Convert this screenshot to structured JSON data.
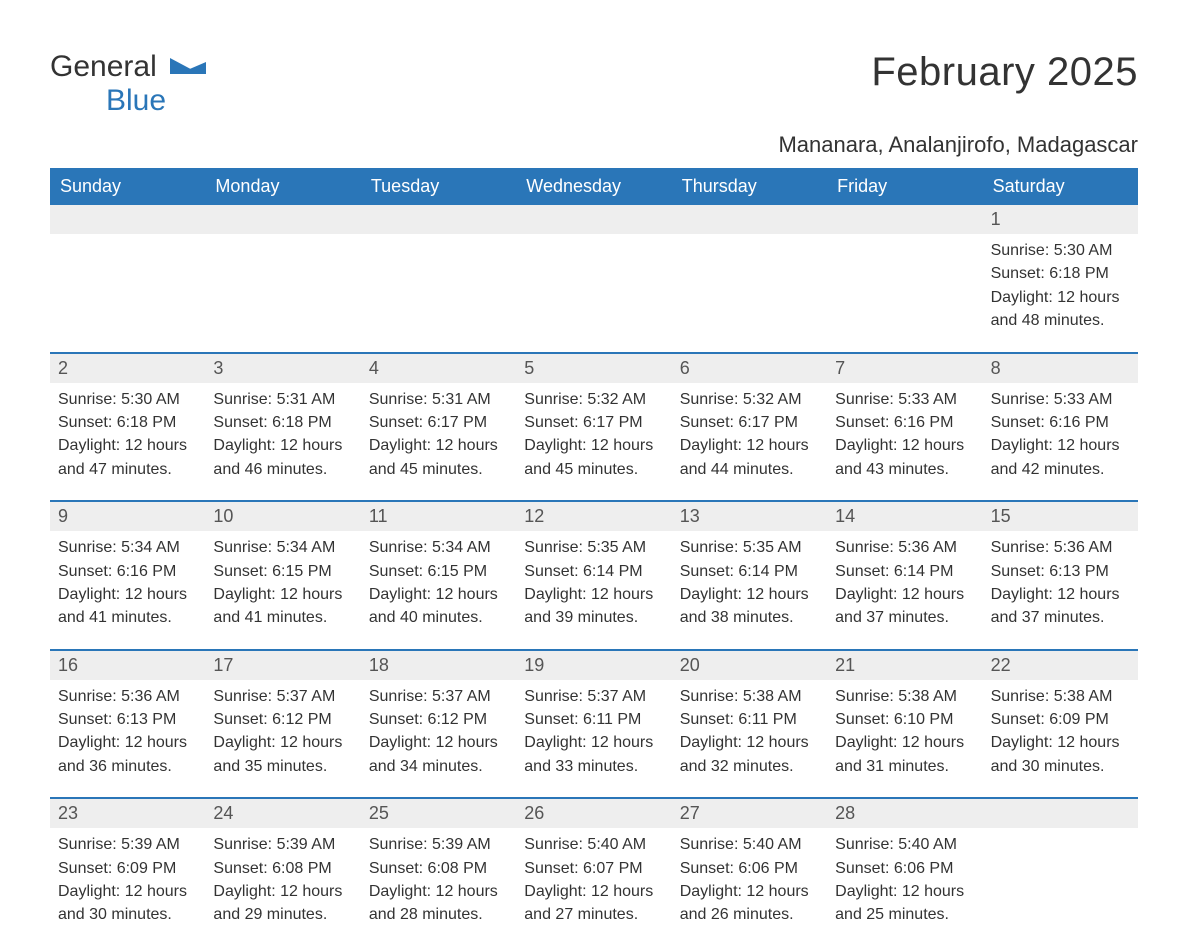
{
  "brand": {
    "part1": "General",
    "part2": "Blue",
    "accent": "#2a76b8"
  },
  "title": "February 2025",
  "location": "Mananara, Analanjirofo, Madagascar",
  "colors": {
    "header_bg": "#2a76b8",
    "header_text": "#ffffff",
    "daynum_bg": "#eeeeee",
    "text": "#333333",
    "page_bg": "#ffffff"
  },
  "weekdays": [
    "Sunday",
    "Monday",
    "Tuesday",
    "Wednesday",
    "Thursday",
    "Friday",
    "Saturday"
  ],
  "weeks": [
    [
      null,
      null,
      null,
      null,
      null,
      null,
      {
        "d": "1",
        "sunrise": "Sunrise: 5:30 AM",
        "sunset": "Sunset: 6:18 PM",
        "dl1": "Daylight: 12 hours",
        "dl2": "and 48 minutes."
      }
    ],
    [
      {
        "d": "2",
        "sunrise": "Sunrise: 5:30 AM",
        "sunset": "Sunset: 6:18 PM",
        "dl1": "Daylight: 12 hours",
        "dl2": "and 47 minutes."
      },
      {
        "d": "3",
        "sunrise": "Sunrise: 5:31 AM",
        "sunset": "Sunset: 6:18 PM",
        "dl1": "Daylight: 12 hours",
        "dl2": "and 46 minutes."
      },
      {
        "d": "4",
        "sunrise": "Sunrise: 5:31 AM",
        "sunset": "Sunset: 6:17 PM",
        "dl1": "Daylight: 12 hours",
        "dl2": "and 45 minutes."
      },
      {
        "d": "5",
        "sunrise": "Sunrise: 5:32 AM",
        "sunset": "Sunset: 6:17 PM",
        "dl1": "Daylight: 12 hours",
        "dl2": "and 45 minutes."
      },
      {
        "d": "6",
        "sunrise": "Sunrise: 5:32 AM",
        "sunset": "Sunset: 6:17 PM",
        "dl1": "Daylight: 12 hours",
        "dl2": "and 44 minutes."
      },
      {
        "d": "7",
        "sunrise": "Sunrise: 5:33 AM",
        "sunset": "Sunset: 6:16 PM",
        "dl1": "Daylight: 12 hours",
        "dl2": "and 43 minutes."
      },
      {
        "d": "8",
        "sunrise": "Sunrise: 5:33 AM",
        "sunset": "Sunset: 6:16 PM",
        "dl1": "Daylight: 12 hours",
        "dl2": "and 42 minutes."
      }
    ],
    [
      {
        "d": "9",
        "sunrise": "Sunrise: 5:34 AM",
        "sunset": "Sunset: 6:16 PM",
        "dl1": "Daylight: 12 hours",
        "dl2": "and 41 minutes."
      },
      {
        "d": "10",
        "sunrise": "Sunrise: 5:34 AM",
        "sunset": "Sunset: 6:15 PM",
        "dl1": "Daylight: 12 hours",
        "dl2": "and 41 minutes."
      },
      {
        "d": "11",
        "sunrise": "Sunrise: 5:34 AM",
        "sunset": "Sunset: 6:15 PM",
        "dl1": "Daylight: 12 hours",
        "dl2": "and 40 minutes."
      },
      {
        "d": "12",
        "sunrise": "Sunrise: 5:35 AM",
        "sunset": "Sunset: 6:14 PM",
        "dl1": "Daylight: 12 hours",
        "dl2": "and 39 minutes."
      },
      {
        "d": "13",
        "sunrise": "Sunrise: 5:35 AM",
        "sunset": "Sunset: 6:14 PM",
        "dl1": "Daylight: 12 hours",
        "dl2": "and 38 minutes."
      },
      {
        "d": "14",
        "sunrise": "Sunrise: 5:36 AM",
        "sunset": "Sunset: 6:14 PM",
        "dl1": "Daylight: 12 hours",
        "dl2": "and 37 minutes."
      },
      {
        "d": "15",
        "sunrise": "Sunrise: 5:36 AM",
        "sunset": "Sunset: 6:13 PM",
        "dl1": "Daylight: 12 hours",
        "dl2": "and 37 minutes."
      }
    ],
    [
      {
        "d": "16",
        "sunrise": "Sunrise: 5:36 AM",
        "sunset": "Sunset: 6:13 PM",
        "dl1": "Daylight: 12 hours",
        "dl2": "and 36 minutes."
      },
      {
        "d": "17",
        "sunrise": "Sunrise: 5:37 AM",
        "sunset": "Sunset: 6:12 PM",
        "dl1": "Daylight: 12 hours",
        "dl2": "and 35 minutes."
      },
      {
        "d": "18",
        "sunrise": "Sunrise: 5:37 AM",
        "sunset": "Sunset: 6:12 PM",
        "dl1": "Daylight: 12 hours",
        "dl2": "and 34 minutes."
      },
      {
        "d": "19",
        "sunrise": "Sunrise: 5:37 AM",
        "sunset": "Sunset: 6:11 PM",
        "dl1": "Daylight: 12 hours",
        "dl2": "and 33 minutes."
      },
      {
        "d": "20",
        "sunrise": "Sunrise: 5:38 AM",
        "sunset": "Sunset: 6:11 PM",
        "dl1": "Daylight: 12 hours",
        "dl2": "and 32 minutes."
      },
      {
        "d": "21",
        "sunrise": "Sunrise: 5:38 AM",
        "sunset": "Sunset: 6:10 PM",
        "dl1": "Daylight: 12 hours",
        "dl2": "and 31 minutes."
      },
      {
        "d": "22",
        "sunrise": "Sunrise: 5:38 AM",
        "sunset": "Sunset: 6:09 PM",
        "dl1": "Daylight: 12 hours",
        "dl2": "and 30 minutes."
      }
    ],
    [
      {
        "d": "23",
        "sunrise": "Sunrise: 5:39 AM",
        "sunset": "Sunset: 6:09 PM",
        "dl1": "Daylight: 12 hours",
        "dl2": "and 30 minutes."
      },
      {
        "d": "24",
        "sunrise": "Sunrise: 5:39 AM",
        "sunset": "Sunset: 6:08 PM",
        "dl1": "Daylight: 12 hours",
        "dl2": "and 29 minutes."
      },
      {
        "d": "25",
        "sunrise": "Sunrise: 5:39 AM",
        "sunset": "Sunset: 6:08 PM",
        "dl1": "Daylight: 12 hours",
        "dl2": "and 28 minutes."
      },
      {
        "d": "26",
        "sunrise": "Sunrise: 5:40 AM",
        "sunset": "Sunset: 6:07 PM",
        "dl1": "Daylight: 12 hours",
        "dl2": "and 27 minutes."
      },
      {
        "d": "27",
        "sunrise": "Sunrise: 5:40 AM",
        "sunset": "Sunset: 6:06 PM",
        "dl1": "Daylight: 12 hours",
        "dl2": "and 26 minutes."
      },
      {
        "d": "28",
        "sunrise": "Sunrise: 5:40 AM",
        "sunset": "Sunset: 6:06 PM",
        "dl1": "Daylight: 12 hours",
        "dl2": "and 25 minutes."
      },
      null
    ]
  ]
}
